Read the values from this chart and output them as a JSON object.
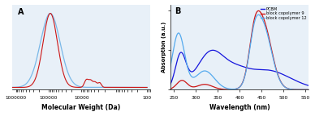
{
  "panel_A": {
    "label": "A",
    "xlabel": "Molecular Weight (Da)",
    "background": "#e8f0f8",
    "line_blue_color": "#7ab8e8",
    "line_red_color": "#cc1515",
    "xlim_left": 1300000,
    "xlim_right": 80,
    "xticks": [
      1000000,
      100000,
      10000,
      100
    ],
    "xtick_labels": [
      "1000000",
      "100000",
      "10000",
      "100"
    ]
  },
  "panel_B": {
    "label": "B",
    "xlabel": "Wavelength (nm)",
    "ylabel": "Absorption (a.u.)",
    "xlim": [
      242,
      558
    ],
    "background": "#e8f0f8",
    "legend": [
      "PCBM",
      "block copolymer 9",
      "block copolymer 12"
    ],
    "legend_colors": [
      "#1515dd",
      "#cc1515",
      "#55aaee"
    ],
    "xticks": [
      250,
      300,
      350,
      400,
      450,
      500,
      550
    ],
    "xtick_labels": [
      "250",
      "300",
      "350",
      "400",
      "450",
      "500",
      "550"
    ]
  }
}
